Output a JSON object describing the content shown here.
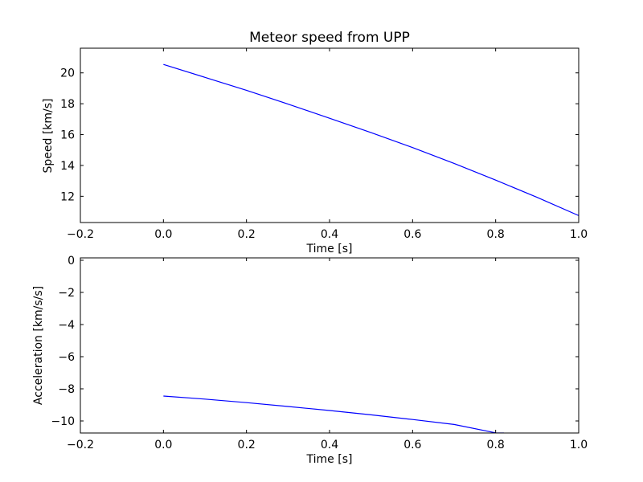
{
  "chart_data": [
    {
      "type": "line",
      "title": "Meteor speed from  UPP",
      "xlabel": "Time [s]",
      "ylabel": "Speed [km/s]",
      "xlim": [
        -0.2,
        1.0
      ],
      "ylim": [
        10.3,
        21.6
      ],
      "xticks": [
        -0.2,
        0.0,
        0.2,
        0.4,
        0.6,
        0.8,
        1.0
      ],
      "xtick_labels": [
        "−0.2",
        "0.0",
        "0.2",
        "0.4",
        "0.6",
        "0.8",
        "1.0"
      ],
      "yticks": [
        12,
        14,
        16,
        18,
        20
      ],
      "ytick_labels": [
        "12",
        "14",
        "16",
        "18",
        "20"
      ],
      "grid": false,
      "line_color": "#0000ff",
      "series": [
        {
          "x": [
            0.0,
            0.1,
            0.2,
            0.3,
            0.4,
            0.5,
            0.6,
            0.7,
            0.8,
            0.9,
            1.0
          ],
          "y": [
            20.55,
            19.71,
            18.87,
            17.98,
            17.06,
            16.13,
            15.16,
            14.13,
            13.05,
            11.93,
            10.75
          ]
        }
      ]
    },
    {
      "type": "line",
      "title": "",
      "xlabel": "Time [s]",
      "ylabel": "Acceleration [km/s/s]",
      "xlim": [
        -0.2,
        1.0
      ],
      "ylim": [
        -10.75,
        0.15
      ],
      "xticks": [
        -0.2,
        0.0,
        0.2,
        0.4,
        0.6,
        0.8,
        1.0
      ],
      "xtick_labels": [
        "−0.2",
        "0.0",
        "0.2",
        "0.4",
        "0.6",
        "0.8",
        "1.0"
      ],
      "yticks": [
        -10,
        -8,
        -6,
        -4,
        -2,
        0
      ],
      "ytick_labels": [
        "−10",
        "−8",
        "−6",
        "−4",
        "−2",
        "0"
      ],
      "grid": false,
      "line_color": "#0000ff",
      "series": [
        {
          "x": [
            0.0,
            0.1,
            0.2,
            0.3,
            0.4,
            0.5,
            0.6,
            0.7,
            0.8,
            0.82
          ],
          "y": [
            -8.45,
            -8.64,
            -8.86,
            -9.1,
            -9.35,
            -9.62,
            -9.91,
            -10.22,
            -10.74,
            -10.75
          ]
        }
      ]
    }
  ]
}
